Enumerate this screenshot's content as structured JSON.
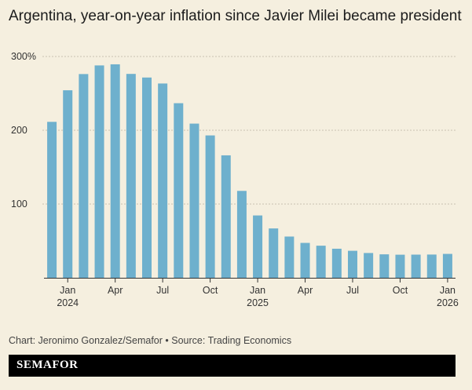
{
  "chart_data": {
    "type": "bar",
    "title": "Argentina, year-on-year inflation since Javier Milei became president",
    "xlabel": "",
    "ylabel": "",
    "ylim": [
      0,
      300
    ],
    "y_ticks": [
      {
        "value": 300,
        "label": "300%"
      },
      {
        "value": 200,
        "label": "200"
      },
      {
        "value": 100,
        "label": "100"
      }
    ],
    "grid": true,
    "categories": [
      "Dec 2023",
      "Jan 2024",
      "Feb 2024",
      "Mar 2024",
      "Apr 2024",
      "May 2024",
      "Jun 2024",
      "Jul 2024",
      "Aug 2024",
      "Sep 2024",
      "Oct 2024",
      "Nov 2024",
      "Dec 2024",
      "Jan 2025",
      "Feb 2025",
      "Mar 2025",
      "Apr 2025",
      "May 2025",
      "Jun 2025",
      "Jul 2025",
      "Aug 2025",
      "Sep 2025",
      "Oct 2025",
      "Nov 2025",
      "Dec 2025",
      "Jan 2026"
    ],
    "values": [
      211.4,
      254.2,
      276.2,
      287.9,
      289.4,
      276.4,
      271.5,
      263.4,
      236.7,
      209.0,
      193.0,
      166.0,
      117.8,
      84.5,
      66.9,
      55.9,
      47.3,
      43.5,
      39.4,
      36.6,
      33.6,
      31.8,
      31.3,
      31.4,
      31.5,
      32.4
    ],
    "x_ticks": [
      {
        "index": 1,
        "label": "Jan",
        "sublabel": "2024"
      },
      {
        "index": 4,
        "label": "Apr",
        "sublabel": ""
      },
      {
        "index": 7,
        "label": "Jul",
        "sublabel": ""
      },
      {
        "index": 10,
        "label": "Oct",
        "sublabel": ""
      },
      {
        "index": 13,
        "label": "Jan",
        "sublabel": "2025"
      },
      {
        "index": 16,
        "label": "Apr",
        "sublabel": ""
      },
      {
        "index": 19,
        "label": "Jul",
        "sublabel": ""
      },
      {
        "index": 22,
        "label": "Oct",
        "sublabel": ""
      },
      {
        "index": 25,
        "label": "Jan",
        "sublabel": "2026"
      }
    ],
    "bar_color": "#6eb0cd"
  },
  "source_text": "Chart: Jeronimo Gonzalez/Semafor • Source: Trading Economics",
  "brand": "SEMAFOR"
}
